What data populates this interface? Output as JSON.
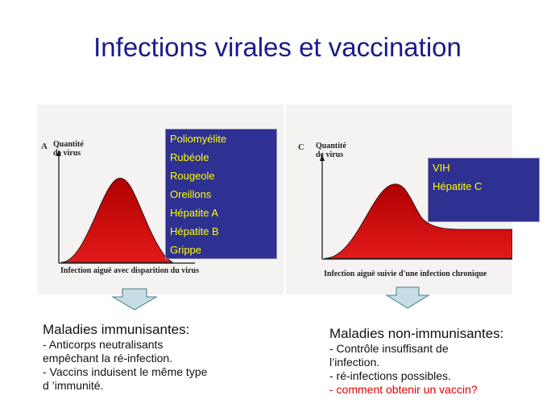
{
  "title": "Infections virales et vaccination",
  "panel_a": {
    "letter": "A",
    "ylabel_line1": "Quantité",
    "ylabel_line2": "de virus",
    "caption": "Infection aiguë avec disparition du virus",
    "viruses": [
      "Poliomyélite",
      "Rubéole",
      "Rougeole",
      "Oreillons",
      "Hépatite A",
      "Hépatite B",
      "Grippe"
    ]
  },
  "panel_c": {
    "letter": "C",
    "ylabel_line1": "Quantité",
    "ylabel_line2": "de virus",
    "caption": "Infection aiguë suivie d'une infection chronique",
    "viruses": [
      "VIH",
      "Hépatite C"
    ]
  },
  "left_text": {
    "heading": "Maladies immunisantes:",
    "lines": [
      "- Anticorps neutralisants",
      "empêchant la ré-infection.",
      "- Vaccins induisent le même type",
      "d ’immunité."
    ]
  },
  "right_text": {
    "heading": "Maladies non-immunisantes:",
    "lines": [
      "- Contrôle insuffisant de",
      "l’infection.",
      "- ré-infections possibles.",
      "- comment obtenir un vaccin?"
    ]
  },
  "colors": {
    "title": "#1a1a8c",
    "box_bg": "#2e3192",
    "box_text": "#ffff00",
    "curve_fill": "#d00000",
    "arrow_fill": "#c6dde6",
    "highlight": "#e00000"
  }
}
